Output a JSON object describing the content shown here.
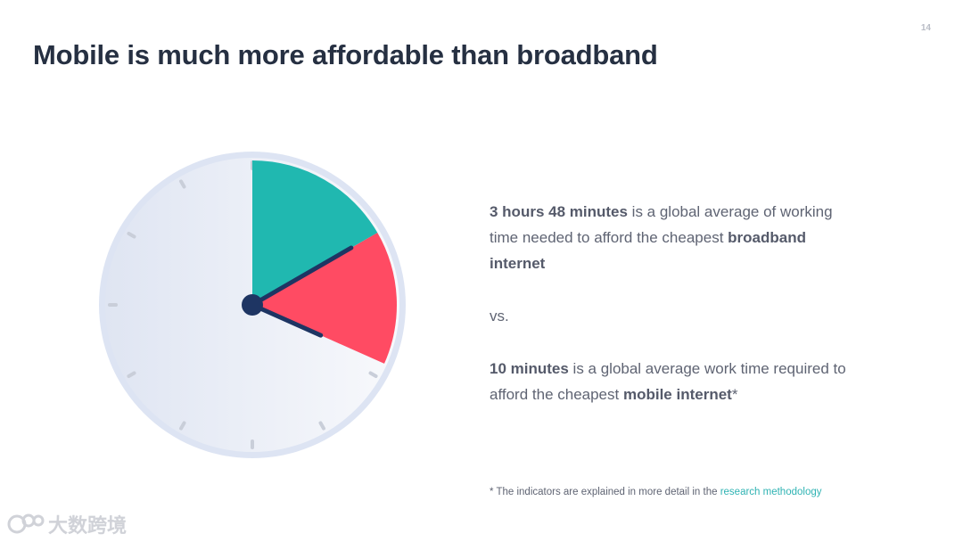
{
  "page_number": "14",
  "title": "Mobile is much more affordable than broadband",
  "paragraph1": {
    "bold_start": "3 hours 48 minutes",
    "mid": " is a global average of working time needed to afford the cheapest ",
    "bold_end": "broadband internet"
  },
  "vs": "vs.",
  "paragraph2": {
    "bold_start": "10 minutes",
    "mid": " is a global average work time required to afford the cheapest ",
    "bold_end": "mobile internet",
    "suffix": "*"
  },
  "footnote": {
    "text": "* The indicators are explained in more detail in the ",
    "link": "research methodology"
  },
  "clock": {
    "broadband_minutes": 228,
    "mobile_minutes": 10,
    "colors": {
      "broadband": "#ff4b63",
      "mobile": "#20b8b0",
      "hands": "#1e3563",
      "face": "#eef1f8",
      "rim": "#dde4f3"
    }
  },
  "watermark": {
    "icon": "logo-icon",
    "text": "大数跨境"
  }
}
